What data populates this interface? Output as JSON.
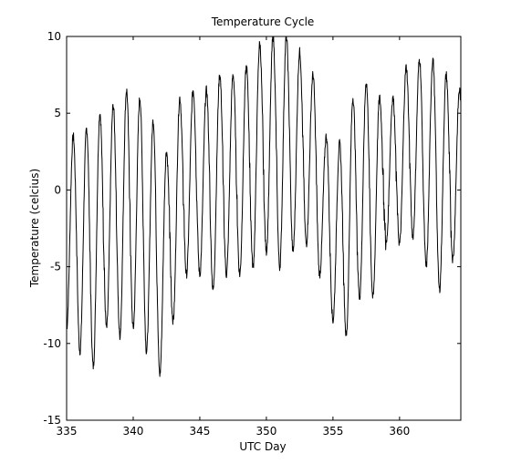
{
  "chart_data": {
    "type": "line",
    "title": "Temperature Cycle",
    "xlabel": "UTC Day",
    "ylabel": "Temperature (celcius)",
    "xlim": [
      335,
      364.6
    ],
    "ylim": [
      -15,
      10
    ],
    "xticks": [
      335,
      340,
      345,
      350,
      355,
      360
    ],
    "yticks": [
      -15,
      -10,
      -5,
      0,
      5,
      10
    ],
    "grid": false,
    "colors": {
      "line": "#000000",
      "axes": "#000000",
      "background": "#ffffff"
    },
    "daily_cycle": [
      {
        "day": 335,
        "high": 3.5,
        "low": -9.0
      },
      {
        "day": 336,
        "high": 4.0,
        "low": -10.5
      },
      {
        "day": 337,
        "high": 5.0,
        "low": -11.5
      },
      {
        "day": 338,
        "high": 5.5,
        "low": -9.0
      },
      {
        "day": 339,
        "high": 6.5,
        "low": -9.5
      },
      {
        "day": 340,
        "high": 6.0,
        "low": -9.0
      },
      {
        "day": 341,
        "high": 4.5,
        "low": -10.5
      },
      {
        "day": 342,
        "high": 2.5,
        "low": -12.0
      },
      {
        "day": 343,
        "high": 6.0,
        "low": -8.5
      },
      {
        "day": 344,
        "high": 6.5,
        "low": -5.5
      },
      {
        "day": 345,
        "high": 6.5,
        "low": -5.5
      },
      {
        "day": 346,
        "high": 7.5,
        "low": -6.5
      },
      {
        "day": 347,
        "high": 7.5,
        "low": -5.5
      },
      {
        "day": 348,
        "high": 8.0,
        "low": -5.5
      },
      {
        "day": 349,
        "high": 9.5,
        "low": -5.0
      },
      {
        "day": 350,
        "high": 10.0,
        "low": -4.0
      },
      {
        "day": 351,
        "high": 10.0,
        "low": -5.0
      },
      {
        "day": 352,
        "high": 9.0,
        "low": -4.0
      },
      {
        "day": 353,
        "high": 7.5,
        "low": -3.5
      },
      {
        "day": 354,
        "high": 3.5,
        "low": -5.5
      },
      {
        "day": 355,
        "high": 3.0,
        "low": -8.5
      },
      {
        "day": 356,
        "high": 6.0,
        "low": -9.5
      },
      {
        "day": 357,
        "high": 7.0,
        "low": -7.0
      },
      {
        "day": 358,
        "high": 6.0,
        "low": -7.0
      },
      {
        "day": 359,
        "high": 6.0,
        "low": -3.5
      },
      {
        "day": 360,
        "high": 8.0,
        "low": -3.5
      },
      {
        "day": 361,
        "high": 8.5,
        "low": -3.0
      },
      {
        "day": 362,
        "high": 8.5,
        "low": -5.0
      },
      {
        "day": 363,
        "high": 7.5,
        "low": -6.5
      },
      {
        "day": 364,
        "high": 6.5,
        "low": -4.5
      }
    ]
  }
}
